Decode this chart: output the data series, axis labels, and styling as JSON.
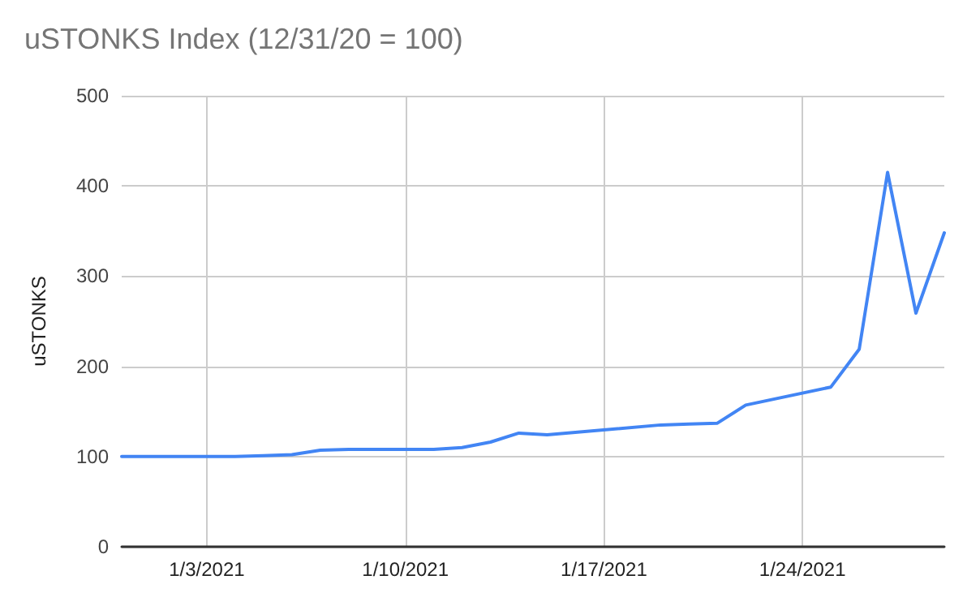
{
  "chart_data": {
    "type": "line",
    "title": "uSTONKS Index (12/31/20 = 100)",
    "ylabel": "uSTONKS",
    "x": [
      "2020-12-31",
      "2021-01-04",
      "2021-01-05",
      "2021-01-06",
      "2021-01-07",
      "2021-01-08",
      "2021-01-11",
      "2021-01-12",
      "2021-01-13",
      "2021-01-14",
      "2021-01-15",
      "2021-01-19",
      "2021-01-20",
      "2021-01-21",
      "2021-01-22",
      "2021-01-25",
      "2021-01-26",
      "2021-01-27",
      "2021-01-28",
      "2021-01-29"
    ],
    "series": [
      {
        "color": "#4285f4",
        "values": [
          100,
          100,
          101,
          102,
          107,
          108,
          108,
          110,
          116,
          126,
          124,
          135,
          136,
          137,
          157,
          177,
          219,
          415,
          259,
          348
        ]
      }
    ],
    "xlim": [
      "2020-12-31",
      "2021-01-29"
    ],
    "xticks": [
      {
        "value": "2021-01-03",
        "label": "1/3/2021"
      },
      {
        "value": "2021-01-10",
        "label": "1/10/2021"
      },
      {
        "value": "2021-01-17",
        "label": "1/17/2021"
      },
      {
        "value": "2021-01-24",
        "label": "1/24/2021"
      }
    ],
    "ylim": [
      0,
      500
    ],
    "yticks": [
      0,
      100,
      200,
      300,
      400,
      500
    ],
    "grid": true,
    "marker": "none",
    "line_style": "solid"
  }
}
